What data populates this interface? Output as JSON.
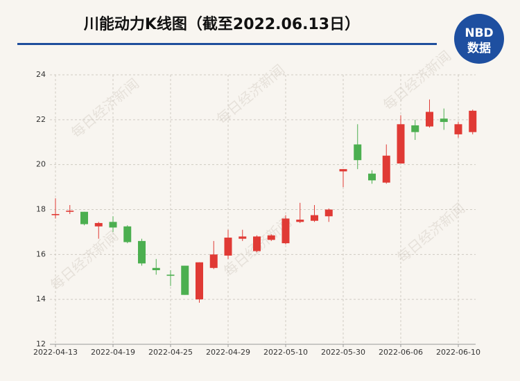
{
  "logo": {
    "line1": "NBD",
    "line2": "数据"
  },
  "watermark": "每日经济新闻",
  "chart_data": {
    "type": "candlestick",
    "title": "川能动力K线图（截至2022.06.13日）",
    "categories": [
      "2022-04-13",
      null,
      null,
      null,
      "2022-04-19",
      null,
      null,
      null,
      "2022-04-25",
      null,
      null,
      null,
      "2022-04-29",
      null,
      null,
      null,
      "2022-05-10",
      null,
      null,
      null,
      "2022-05-30",
      null,
      null,
      null,
      "2022-06-06",
      null,
      null,
      null,
      "2022-06-10",
      null
    ],
    "open": [
      17.75,
      17.9,
      17.9,
      17.25,
      17.45,
      17.25,
      16.6,
      15.4,
      15.1,
      15.5,
      14.0,
      15.4,
      15.95,
      16.7,
      16.15,
      16.65,
      16.5,
      17.45,
      17.5,
      17.7,
      19.7,
      20.9,
      19.6,
      19.2,
      20.05,
      21.75,
      21.7,
      22.05,
      21.35,
      21.45
    ],
    "high": [
      18.5,
      18.2,
      17.9,
      17.45,
      17.7,
      17.3,
      16.7,
      15.8,
      15.3,
      15.5,
      15.65,
      16.6,
      17.1,
      17.1,
      16.85,
      16.9,
      17.75,
      18.3,
      18.2,
      18.05,
      19.8,
      21.8,
      19.75,
      20.9,
      22.2,
      22.0,
      22.9,
      22.5,
      21.9,
      22.45
    ],
    "low": [
      17.6,
      17.8,
      17.3,
      16.7,
      17.0,
      16.5,
      15.5,
      15.1,
      14.6,
      14.2,
      13.85,
      15.35,
      15.8,
      16.6,
      16.1,
      16.6,
      16.45,
      17.4,
      17.45,
      17.45,
      19.0,
      19.8,
      19.15,
      19.15,
      20.05,
      21.1,
      21.65,
      21.55,
      21.2,
      21.35
    ],
    "close": [
      17.8,
      17.95,
      17.35,
      17.4,
      17.2,
      16.55,
      15.6,
      15.3,
      15.05,
      14.2,
      15.65,
      16.0,
      16.75,
      16.8,
      16.8,
      16.85,
      17.6,
      17.55,
      17.75,
      18.0,
      19.8,
      20.2,
      19.3,
      20.4,
      21.8,
      21.45,
      22.35,
      21.9,
      21.8,
      22.4
    ],
    "up_color": "#e03a35",
    "down_color": "#4caf50",
    "ylim": [
      12,
      24
    ],
    "yticks": [
      12,
      14,
      16,
      18,
      20,
      22,
      24
    ],
    "grid": true
  }
}
